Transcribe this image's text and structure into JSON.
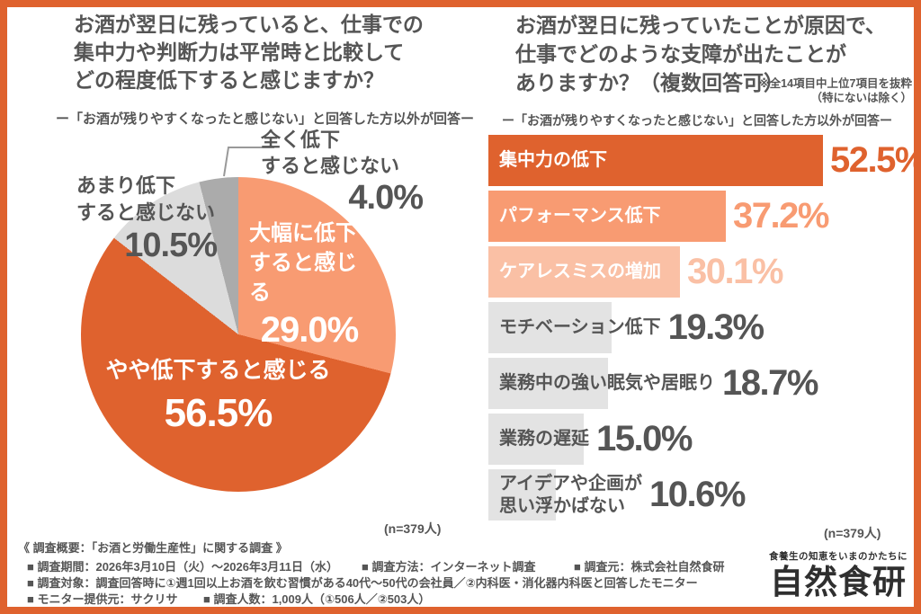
{
  "colors": {
    "primary": "#DF622E",
    "salmon": "#F89B72",
    "pale_salmon": "#FAC0A5",
    "bar_gray": "#E3E3E3",
    "pie_light_gray": "#DCDCDC",
    "pie_mid_gray": "#ABABAB",
    "text_gray": "#555555",
    "leader_gray": "#999999",
    "white": "#FFFFFF"
  },
  "left_panel": {
    "title_lines": [
      "お酒が翌日に残っていると、仕事での",
      "集中力や判断力は平常時と比較して",
      "どの程度低下すると感じますか？"
    ],
    "subtitle": "ー「お酒が残りやすくなったと感じない」と回答した方以外が回答ー"
  },
  "right_panel": {
    "title_lines": [
      "お酒が翌日に残っていたことが原因で、",
      "仕事でどのような支障が出たことが",
      "ありますか？（複数回答可）"
    ],
    "note_lines": [
      "※全14項目中上位7項目を抜粋",
      "（特にないは除く）"
    ],
    "subtitle": "ー「お酒が残りやすくなったと感じない」と回答した方以外が回答ー"
  },
  "chart_data": [
    {
      "type": "pie",
      "title": "お酒が翌日に残っていると、仕事での集中力や判断力は平常時と比較してどの程度低下すると感じますか？",
      "categories": [
        "大幅に低下すると感じる",
        "やや低下すると感じる",
        "あまり低下すると感じない",
        "全く低下すると感じない"
      ],
      "values": [
        29.0,
        56.5,
        10.5,
        4.0
      ],
      "start_angle_deg": 0,
      "direction": "clockwise",
      "sample_size_label": "(n=379人)",
      "slices": [
        {
          "label": "大幅に低下すると感じる",
          "label_lines": [
            "大幅に低下",
            "すると感じる"
          ],
          "value": 29.0,
          "display_value": "29.0%",
          "color": "#F89B72",
          "label_color": "#FFFFFF"
        },
        {
          "label": "やや低下すると感じる",
          "label_lines": [
            "やや低下すると感じる"
          ],
          "value": 56.5,
          "display_value": "56.5%",
          "color": "#DF622E",
          "label_color": "#FFFFFF"
        },
        {
          "label": "あまり低下すると感じない",
          "label_lines": [
            "あまり低下",
            "すると感じない"
          ],
          "value": 10.5,
          "display_value": "10.5%",
          "color": "#DCDCDC",
          "label_color": "#555555"
        },
        {
          "label": "全く低下すると感じない",
          "label_lines": [
            "全く低下",
            "すると感じない"
          ],
          "value": 4.0,
          "display_value": "4.0%",
          "color": "#ABABAB",
          "label_color": "#555555"
        }
      ]
    },
    {
      "type": "bar",
      "orientation": "horizontal",
      "title": "お酒が翌日に残っていたことが原因で、仕事でどのような支障が出たことがありますか？（複数回答可）",
      "categories": [
        "集中力の低下",
        "パフォーマンス低下",
        "ケアレスミスの増加",
        "モチベーション低下",
        "業務中の強い眠気や居眠り",
        "業務の遅延",
        "アイデアや企画が思い浮かばない"
      ],
      "values": [
        52.5,
        37.2,
        30.1,
        19.3,
        18.7,
        15.0,
        10.6
      ],
      "xlim": [
        0,
        57
      ],
      "grid": false,
      "sample_size_label": "(n=379人)",
      "bars": [
        {
          "label": "集中力の低下",
          "label_lines": [
            "集中力の低下"
          ],
          "value": 52.5,
          "display_value": "52.5%",
          "bar_color": "#DF622E",
          "label_color": "#FFFFFF",
          "value_color": "#DF622E"
        },
        {
          "label": "パフォーマンス低下",
          "label_lines": [
            "パフォーマンス低下"
          ],
          "value": 37.2,
          "display_value": "37.2%",
          "bar_color": "#F89B72",
          "label_color": "#FFFFFF",
          "value_color": "#F89B72"
        },
        {
          "label": "ケアレスミスの増加",
          "label_lines": [
            "ケアレスミスの増加"
          ],
          "value": 30.1,
          "display_value": "30.1%",
          "bar_color": "#FAC0A5",
          "label_color": "#FFFFFF",
          "value_color": "#FAC0A5"
        },
        {
          "label": "モチベーション低下",
          "label_lines": [
            "モチベーション低下"
          ],
          "value": 19.3,
          "display_value": "19.3%",
          "bar_color": "#E3E3E3",
          "label_color": "#555555",
          "value_color": "#555555"
        },
        {
          "label": "業務中の強い眠気や居眠り",
          "label_lines": [
            "業務中の強い眠気や居眠り"
          ],
          "value": 18.7,
          "display_value": "18.7%",
          "bar_color": "#E3E3E3",
          "label_color": "#555555",
          "value_color": "#555555"
        },
        {
          "label": "業務の遅延",
          "label_lines": [
            "業務の遅延"
          ],
          "value": 15.0,
          "display_value": "15.0%",
          "bar_color": "#E3E3E3",
          "label_color": "#555555",
          "value_color": "#555555"
        },
        {
          "label": "アイデアや企画が思い浮かばない",
          "label_lines": [
            "アイデアや企画が",
            "思い浮かばない"
          ],
          "value": 10.6,
          "display_value": "10.6%",
          "bar_color": "#E3E3E3",
          "label_color": "#555555",
          "value_color": "#555555"
        }
      ]
    }
  ],
  "footer": {
    "heading": "《 調査概要：「お酒と労働生産性」に関する調査 》",
    "rows": [
      [
        "■ 調査期間：2026年3月10日（火）〜2026年3月11日（水）",
        "■ 調査方法：インターネット調査",
        "■ 調査元：株式会社自然食研"
      ],
      [
        "■ 調査対象：調査回答時に①週1回以上お酒を飲む習慣がある40代〜50代の会社員／②内科医・消化器内科医と回答したモニター"
      ],
      [
        "■ モニター提供元：サクリサ",
        "■ 調査人数：1,009人（①506人／②503人）"
      ]
    ],
    "logo_tagline": "食養生の知恵をいまのかたちに",
    "logo_name": "自然食研"
  }
}
